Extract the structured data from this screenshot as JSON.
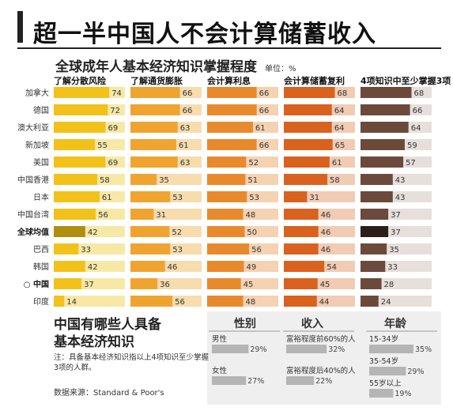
{
  "title": "超一半中国人不会计算储蓄收入",
  "subtitle": "全球成年人基本经济知识掌握程度",
  "unit": "单位：%",
  "question_title_line1": "中国有哪些人具备",
  "question_title_line2": "基本经济知识",
  "note": "注：具备基本经济知识指以上4项知识至少掌握3项的人群。",
  "source": "数据来源：Standard & Poor's",
  "colors": {
    "risk": "#f2c21b",
    "risk_light": "#f8e8a6",
    "inflation": "#f0a430",
    "inflation_light": "#f7dcae",
    "interest": "#e88a2c",
    "interest_light": "#f5d2b2",
    "compound": "#d9621e",
    "compound_light": "#f1cbb4",
    "atleast3": "#6b4a3c",
    "atleast3_light": "#e7dfdc",
    "china_dark": "#b08f10",
    "demo_bar": "#b5b5b5",
    "demo_bg": "#efefef"
  },
  "chart_data": {
    "type": "bar",
    "orientation": "horizontal",
    "ylim": [
      0,
      100
    ],
    "categories": [
      "加拿大",
      "德国",
      "澳大利亚",
      "新加坡",
      "美国",
      "中国香港",
      "日本",
      "中国台湾",
      "全球均值",
      "巴西",
      "韩国",
      "中国",
      "印度"
    ],
    "highlight_categories": [
      "全球均值",
      "中国"
    ],
    "china_marker": "○",
    "series": [
      {
        "name": "了解分散风险",
        "values": [
          74,
          72,
          69,
          55,
          69,
          58,
          61,
          56,
          42,
          33,
          42,
          37,
          14
        ]
      },
      {
        "name": "了解通货膨胀",
        "values": [
          66,
          66,
          63,
          61,
          63,
          35,
          53,
          31,
          52,
          53,
          46,
          36,
          56
        ]
      },
      {
        "name": "会计算利息",
        "values": [
          66,
          66,
          61,
          66,
          52,
          51,
          53,
          48,
          50,
          56,
          49,
          45,
          48
        ]
      },
      {
        "name": "会计算储蓄复利",
        "values": [
          68,
          64,
          64,
          65,
          61,
          58,
          31,
          46,
          46,
          46,
          54,
          45,
          44
        ]
      },
      {
        "name": "4项知识中至少掌握3项",
        "values": [
          68,
          66,
          64,
          59,
          57,
          43,
          43,
          37,
          37,
          35,
          33,
          28,
          24
        ]
      }
    ]
  },
  "demographics": {
    "gender": {
      "header": "性别",
      "items": [
        {
          "label": "男性",
          "value": 29
        },
        {
          "label": "女性",
          "value": 27
        }
      ]
    },
    "income": {
      "header": "收入",
      "items": [
        {
          "label": "富裕程度前60%的人",
          "value": 32
        },
        {
          "label": "富裕程度后40%的人",
          "value": 22
        }
      ]
    },
    "age": {
      "header": "年龄",
      "items": [
        {
          "label": "15-34岁",
          "value": 35
        },
        {
          "label": "35-54岁",
          "value": 29
        },
        {
          "label": "55岁以上",
          "value": 19
        }
      ]
    }
  }
}
